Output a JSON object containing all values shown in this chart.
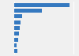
{
  "values": [
    1850000,
    920000,
    270000,
    200000,
    175000,
    155000,
    140000,
    90000,
    115000
  ],
  "bar_color": "#3579c0",
  "background_color": "#f0f0f0",
  "plot_bg_color": "#f0f0f0",
  "grid_color": "#ffffff",
  "figsize": [
    1.0,
    0.71
  ],
  "dpi": 100,
  "n_bars": 9
}
